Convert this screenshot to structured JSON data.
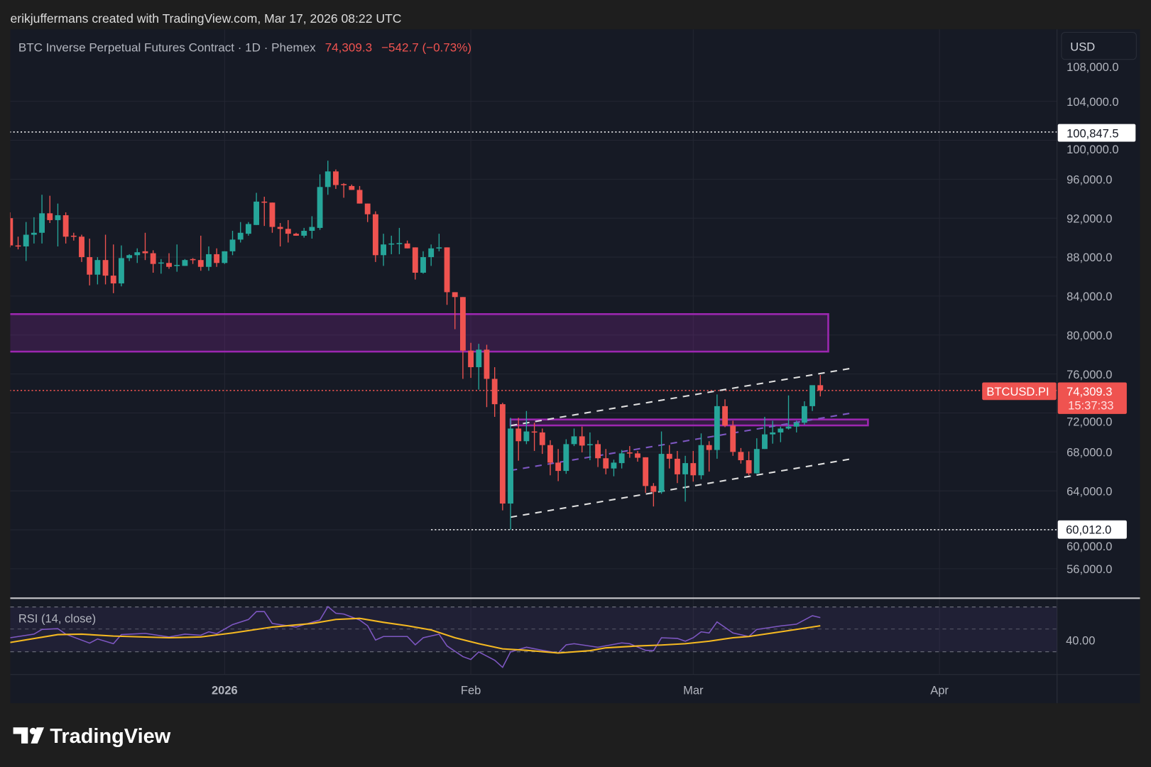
{
  "header": {
    "attribution": "erikjuffermans created with TradingView.com, Mar 17, 2026 08:22 UTC"
  },
  "legend": {
    "symbol": "BTC Inverse Perpetual Futures Contract · 1D · Phemex",
    "price": "74,309.3",
    "change": "−542.7 (−0.73%)"
  },
  "currency_button": "USD",
  "price_axis": {
    "ticks": [
      "108,000.0",
      "104,000.0",
      "100,000.0",
      "96,000.0",
      "92,000.0",
      "88,000.0",
      "84,000.0",
      "80,000.0",
      "76,000.0",
      "72,000.0",
      "68,000.0",
      "64,000.0",
      "60,000.0",
      "56,000.0"
    ],
    "marker_high": "100,847.5",
    "marker_low": "60,012.0",
    "symbol_label": "BTCUSD.PI",
    "last_price": "74,309.3",
    "countdown": "15:37:33"
  },
  "time_axis": [
    {
      "label": "2026",
      "date": "2026-01-01"
    },
    {
      "label": "Feb",
      "date": "2026-02-01"
    },
    {
      "label": "Mar",
      "date": "2026-03-01"
    },
    {
      "label": "Apr",
      "date": "2026-04-01"
    }
  ],
  "rsi": {
    "label": "RSI (14, close)",
    "tick": "40.00"
  },
  "branding": {
    "logo_text": "TradingView"
  },
  "colors": {
    "up": "#26a69a",
    "down": "#ef5350",
    "zone": "#9c27b0",
    "rsi": "#7e57c2",
    "rsi_ma": "#f5b921",
    "background": "#161a25"
  },
  "chart_data": [
    {
      "type": "candlestick",
      "title": "BTC Inverse Perpetual Futures Contract · 1D · Phemex",
      "ylabel": "USD",
      "ylim": [
        54000,
        109000
      ],
      "grid": true,
      "start_date": "2025-12-05",
      "interval": "1D",
      "ohlc_fields": [
        "open",
        "high",
        "low",
        "close"
      ],
      "ohlc": [
        [
          92000,
          92600,
          89000,
          89200
        ],
        [
          89200,
          90100,
          88800,
          89100
        ],
        [
          89100,
          91600,
          87600,
          90300
        ],
        [
          90300,
          92100,
          89400,
          90500
        ],
        [
          90500,
          94400,
          89400,
          92500
        ],
        [
          92500,
          94300,
          91500,
          91800
        ],
        [
          91800,
          93500,
          89100,
          92300
        ],
        [
          92300,
          92600,
          89400,
          90100
        ],
        [
          90200,
          90500,
          89700,
          90100
        ],
        [
          90100,
          90300,
          87500,
          88000
        ],
        [
          88000,
          89900,
          85100,
          86200
        ],
        [
          86200,
          88000,
          85200,
          87700
        ],
        [
          87700,
          90300,
          85200,
          86100
        ],
        [
          86100,
          89300,
          84300,
          85300
        ],
        [
          85300,
          89200,
          85000,
          87900
        ],
        [
          87900,
          88300,
          87600,
          88200
        ],
        [
          88200,
          88900,
          87400,
          88500
        ],
        [
          88600,
          90500,
          87700,
          88400
        ],
        [
          88400,
          88700,
          86400,
          87300
        ],
        [
          87400,
          87800,
          86300,
          87450
        ],
        [
          87400,
          88400,
          86800,
          87000
        ],
        [
          87100,
          89300,
          86500,
          87200
        ],
        [
          87100,
          87800,
          87100,
          87700
        ],
        [
          87800,
          87900,
          87300,
          87700
        ],
        [
          87700,
          90200,
          86600,
          87000
        ],
        [
          87000,
          89100,
          86600,
          88300
        ],
        [
          88300,
          88900,
          87000,
          87400
        ],
        [
          87400,
          88600,
          87300,
          88600
        ],
        [
          88600,
          90700,
          88200,
          89800
        ],
        [
          89800,
          91600,
          89500,
          90500
        ],
        [
          90400,
          91600,
          90200,
          91400
        ],
        [
          91300,
          94600,
          91300,
          93700
        ],
        [
          93700,
          94200,
          91200,
          93600
        ],
        [
          93600,
          93600,
          90500,
          91100
        ],
        [
          91100,
          91500,
          89100,
          90900
        ],
        [
          90900,
          91800,
          89500,
          90400
        ],
        [
          90400,
          90500,
          90200,
          90200
        ],
        [
          90200,
          91000,
          90000,
          90700
        ],
        [
          90700,
          92200,
          89900,
          91100
        ],
        [
          91000,
          96500,
          90800,
          95200
        ],
        [
          95200,
          97900,
          94400,
          96800
        ],
        [
          96800,
          97000,
          95000,
          95400
        ],
        [
          95500,
          95600,
          94100,
          95450
        ],
        [
          95300,
          95450,
          94900,
          94900
        ],
        [
          94900,
          95300,
          93500,
          93500
        ],
        [
          93500,
          93500,
          91600,
          92400
        ],
        [
          92400,
          92700,
          87500,
          88200
        ],
        [
          88200,
          90400,
          87100,
          89300
        ],
        [
          89300,
          90200,
          88300,
          89400
        ],
        [
          89400,
          91000,
          88300,
          89450
        ],
        [
          89400,
          89700,
          88900,
          88900
        ],
        [
          89000,
          89000,
          85700,
          86400
        ],
        [
          86400,
          88600,
          86300,
          88000
        ],
        [
          88000,
          89300,
          87100,
          88900
        ],
        [
          88900,
          90400,
          88600,
          89000
        ],
        [
          89000,
          89000,
          83100,
          84400
        ],
        [
          84400,
          84400,
          80600,
          83900
        ],
        [
          83900,
          83900,
          75500,
          78400
        ],
        [
          78400,
          79200,
          75600,
          76700
        ],
        [
          76700,
          79100,
          74400,
          78500
        ],
        [
          78500,
          79000,
          72600,
          75500
        ],
        [
          75500,
          76700,
          71600,
          72900
        ],
        [
          72900,
          73050,
          62000,
          62700
        ],
        [
          62700,
          71500,
          60012,
          70400
        ],
        [
          70400,
          71500,
          67100,
          69100
        ],
        [
          69100,
          72200,
          68800,
          70100
        ],
        [
          70100,
          71000,
          68100,
          70000
        ],
        [
          70000,
          70400,
          67800,
          68700
        ],
        [
          68700,
          69200,
          65600,
          66900
        ],
        [
          66900,
          68300,
          65000,
          66050
        ],
        [
          66050,
          69300,
          65750,
          68800
        ],
        [
          68800,
          70400,
          68600,
          69600
        ],
        [
          69600,
          70600,
          67950,
          68650
        ],
        [
          68750,
          70000,
          67150,
          68800
        ],
        [
          68800,
          69200,
          66450,
          67350
        ],
        [
          67350,
          68300,
          65700,
          66300
        ],
        [
          66300,
          67200,
          65500,
          66900
        ],
        [
          66850,
          68200,
          66300,
          67850
        ],
        [
          67950,
          68600,
          67400,
          67900
        ],
        [
          67850,
          68100,
          67000,
          67400
        ],
        [
          67450,
          67450,
          63800,
          64500
        ],
        [
          64500,
          64800,
          62400,
          63900
        ],
        [
          63900,
          70100,
          63700,
          67800
        ],
        [
          67800,
          68700,
          66300,
          67300
        ],
        [
          67300,
          68100,
          64800,
          65700
        ],
        [
          65700,
          67600,
          62900,
          66850
        ],
        [
          66850,
          68100,
          64950,
          65600
        ],
        [
          65600,
          69900,
          65200,
          68700
        ],
        [
          68700,
          69100,
          65980,
          68200
        ],
        [
          68200,
          73900,
          67300,
          72700
        ],
        [
          72700,
          73400,
          70550,
          70700
        ],
        [
          70700,
          71200,
          67600,
          68000
        ],
        [
          68000,
          68400,
          66800,
          67150
        ],
        [
          67150,
          68050,
          65600,
          65800
        ],
        [
          65800,
          69400,
          65750,
          68300
        ],
        [
          68300,
          71600,
          68300,
          69800
        ],
        [
          69800,
          71200,
          68850,
          70000
        ],
        [
          70000,
          70600,
          69000,
          70400
        ],
        [
          70400,
          73800,
          70300,
          70600
        ],
        [
          70600,
          71200,
          70000,
          71000
        ],
        [
          71000,
          73200,
          70800,
          72700
        ],
        [
          72700,
          74800,
          72200,
          74852
        ],
        [
          74852,
          75900,
          73700,
          74309.3
        ]
      ],
      "horizontal_lines": [
        {
          "price": 100847.5,
          "style": "dotted",
          "color": "#ffffff",
          "from": "2025-12-04"
        },
        {
          "price": 60012.0,
          "style": "dotted",
          "color": "#ffffff",
          "from": "2026-01-27"
        },
        {
          "price": 74309.3,
          "style": "dotted",
          "color": "#ef5350",
          "from": "2025-12-04"
        }
      ],
      "zones": [
        {
          "from": "2025-12-04",
          "to": "2026-03-18",
          "low": 78300,
          "high": 82150
        },
        {
          "from": "2026-02-06",
          "to": "2026-03-23",
          "low": 70720,
          "high": 71330
        }
      ],
      "trendlines": [
        {
          "from": [
            "2026-02-06",
            70700
          ],
          "to": [
            "2026-03-21",
            76600
          ],
          "color": "#e0e0e0"
        },
        {
          "from": [
            "2026-02-06",
            66100
          ],
          "to": [
            "2026-03-21",
            72000
          ],
          "color": "#7e57c2"
        },
        {
          "from": [
            "2026-02-06",
            61300
          ],
          "to": [
            "2026-03-21",
            67300
          ],
          "color": "#e0e0e0"
        }
      ]
    },
    {
      "type": "line",
      "title": "RSI (14, close)",
      "bands": [
        70,
        50,
        30
      ],
      "series": [
        {
          "role": "rsi",
          "points": [
            [
              "2025-12-05",
              42.1
            ],
            [
              "2025-12-08",
              45.3
            ],
            [
              "2025-12-09",
              49.6
            ],
            [
              "2025-12-11",
              50.3
            ],
            [
              "2025-12-12",
              45.3
            ],
            [
              "2025-12-15",
              37.2
            ],
            [
              "2025-12-16",
              41.0
            ],
            [
              "2025-12-18",
              36.7
            ],
            [
              "2025-12-19",
              44.9
            ],
            [
              "2025-12-22",
              46.0
            ],
            [
              "2025-12-25",
              42.8
            ],
            [
              "2025-12-27",
              45.3
            ],
            [
              "2025-12-29",
              44.3
            ],
            [
              "2025-12-30",
              47.5
            ],
            [
              "2025-12-31",
              45.8
            ],
            [
              "2026-01-02",
              54.0
            ],
            [
              "2026-01-04",
              58.7
            ],
            [
              "2026-01-05",
              65.8
            ],
            [
              "2026-01-06",
              65.8
            ],
            [
              "2026-01-07",
              55.0
            ],
            [
              "2026-01-10",
              51.8
            ],
            [
              "2026-01-11",
              54.0
            ],
            [
              "2026-01-13",
              58.2
            ],
            [
              "2026-01-14",
              70.3
            ],
            [
              "2026-01-15",
              64.3
            ],
            [
              "2026-01-16",
              63.6
            ],
            [
              "2026-01-18",
              58.2
            ],
            [
              "2026-01-19",
              52.9
            ],
            [
              "2026-01-20",
              40.0
            ],
            [
              "2026-01-21",
              43.2
            ],
            [
              "2026-01-24",
              43.2
            ],
            [
              "2026-01-25",
              35.7
            ],
            [
              "2026-01-26",
              42.1
            ],
            [
              "2026-01-28",
              45.3
            ],
            [
              "2026-01-29",
              34.6
            ],
            [
              "2026-01-31",
              24.9
            ],
            [
              "2026-02-01",
              22.3
            ],
            [
              "2026-02-02",
              29.2
            ],
            [
              "2026-02-04",
              21.7
            ],
            [
              "2026-02-05",
              15.2
            ],
            [
              "2026-02-06",
              29.2
            ],
            [
              "2026-02-08",
              33.5
            ],
            [
              "2026-02-10",
              30.7
            ],
            [
              "2026-02-12",
              28.2
            ],
            [
              "2026-02-13",
              35.7
            ],
            [
              "2026-02-14",
              36.7
            ],
            [
              "2026-02-17",
              33.5
            ],
            [
              "2026-02-20",
              37.4
            ],
            [
              "2026-02-21",
              36.7
            ],
            [
              "2026-02-23",
              30.7
            ],
            [
              "2026-02-24",
              30.3
            ],
            [
              "2026-02-25",
              42.1
            ],
            [
              "2026-02-27",
              41.5
            ],
            [
              "2026-02-28",
              38.9
            ],
            [
              "2026-03-01",
              42.1
            ],
            [
              "2026-03-02",
              47.5
            ],
            [
              "2026-03-03",
              46.4
            ],
            [
              "2026-03-04",
              56.5
            ],
            [
              "2026-03-06",
              46.4
            ],
            [
              "2026-03-08",
              43.2
            ],
            [
              "2026-03-09",
              49.6
            ],
            [
              "2026-03-12",
              52.8
            ],
            [
              "2026-03-14",
              54.4
            ],
            [
              "2026-03-16",
              62.1
            ],
            [
              "2026-03-17",
              60.4
            ]
          ]
        },
        {
          "role": "rsi-ma",
          "points": [
            [
              "2025-12-05",
              37.8
            ],
            [
              "2025-12-11",
              44.9
            ],
            [
              "2025-12-14",
              45.3
            ],
            [
              "2025-12-18",
              43.6
            ],
            [
              "2025-12-25",
              42.1
            ],
            [
              "2025-12-29",
              42.8
            ],
            [
              "2026-01-02",
              46.4
            ],
            [
              "2026-01-07",
              51.8
            ],
            [
              "2026-01-12",
              55.0
            ],
            [
              "2026-01-15",
              58.7
            ],
            [
              "2026-01-18",
              59.7
            ],
            [
              "2026-01-21",
              56.1
            ],
            [
              "2026-01-24",
              52.9
            ],
            [
              "2026-01-27",
              49.2
            ],
            [
              "2026-01-30",
              42.1
            ],
            [
              "2026-02-02",
              36.7
            ],
            [
              "2026-02-05",
              32.0
            ],
            [
              "2026-02-08",
              30.7
            ],
            [
              "2026-02-12",
              28.2
            ],
            [
              "2026-02-16",
              30.3
            ],
            [
              "2026-02-18",
              32.9
            ],
            [
              "2026-02-22",
              34.6
            ],
            [
              "2026-02-25",
              35.5
            ],
            [
              "2026-02-28",
              36.7
            ],
            [
              "2026-03-03",
              38.9
            ],
            [
              "2026-03-06",
              42.1
            ],
            [
              "2026-03-08",
              43.2
            ],
            [
              "2026-03-12",
              47.5
            ],
            [
              "2026-03-17",
              52.9
            ]
          ]
        }
      ]
    }
  ]
}
